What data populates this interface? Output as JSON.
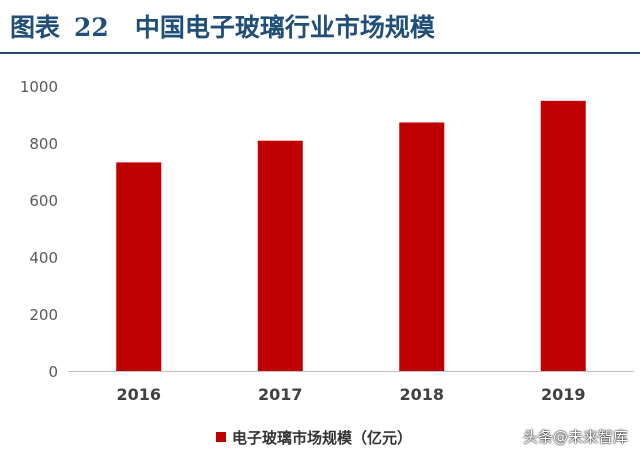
{
  "header": {
    "label": "图表",
    "number": "22",
    "title": "中国电子玻璃行业市场规模"
  },
  "chart_data": {
    "type": "bar",
    "categories": [
      "2016",
      "2017",
      "2018",
      "2019"
    ],
    "series": [
      {
        "name": "电子玻璃市场规模（亿元）",
        "values": [
          732,
          808,
          872,
          948
        ],
        "color": "#c00000"
      }
    ],
    "yticks": [
      "0",
      "200",
      "400",
      "600",
      "800",
      "1000"
    ],
    "ylim": [
      0,
      1000
    ],
    "grid": false,
    "legend_position": "bottom"
  },
  "watermark": "头条@未来智库"
}
